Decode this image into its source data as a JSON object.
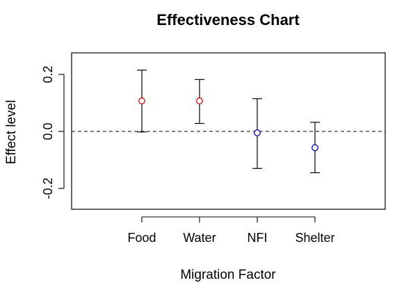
{
  "chart_data": {
    "type": "scatter",
    "title": "Effectiveness Chart",
    "xlabel": "Migration Factor",
    "ylabel": "Effect level",
    "categories": [
      "Food",
      "Water",
      "NFI",
      "Shelter"
    ],
    "values": [
      0.107,
      0.107,
      -0.005,
      -0.057
    ],
    "lower": [
      -0.002,
      0.028,
      -0.13,
      -0.145
    ],
    "upper": [
      0.215,
      0.182,
      0.115,
      0.032
    ],
    "point_colors": [
      "#dd0000",
      "#dd0000",
      "#0000bb",
      "#0000bb"
    ],
    "ylim": [
      -0.27,
      0.27
    ],
    "yticks": [
      -0.2,
      0.0,
      0.2
    ],
    "ytick_labels": [
      "-0.2",
      "0.0",
      "0.2"
    ],
    "reference_line": 0,
    "grid": false,
    "legend": "none"
  }
}
